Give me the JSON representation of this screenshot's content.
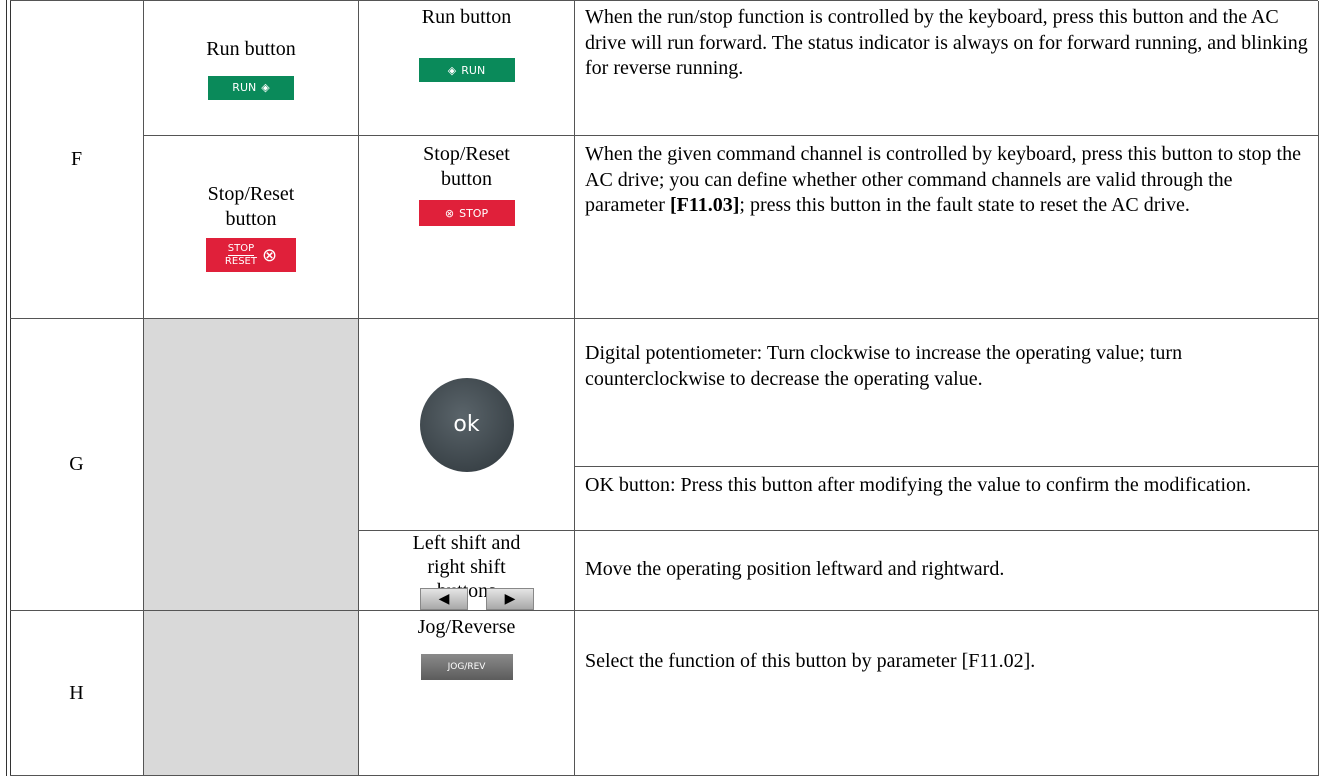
{
  "table": {
    "rows": [
      {
        "key": "F",
        "items": [
          {
            "label_a": "Run button",
            "icon_a": "RUN",
            "label_b": "Run button",
            "icon_b": "RUN",
            "description": [
              "When the run/stop function is controlled by the keyboard, press this button and the AC drive will run forward. The status indicator is always on for forward running, and blinking for reverse running."
            ]
          },
          {
            "label_a": "Stop/Reset button",
            "icon_a": [
              "STOP",
              "RESET"
            ],
            "label_b": "Stop/Reset button",
            "icon_b": "STOP",
            "description": [
              "When the given command channel is controlled by keyboard, press this button to stop the AC drive; you can define whether other command channels are valid through the parameter ",
              "[F11.03]",
              "; press this button in the fault state to reset the AC drive."
            ]
          }
        ]
      },
      {
        "key": "G",
        "items": [
          {
            "icon_b": "ok",
            "descriptions": [
              "Digital potentiometer: Turn clockwise to increase the operating value; turn counterclockwise to decrease the operating value.",
              "OK button: Press this button after modifying the value to confirm the modification."
            ]
          },
          {
            "label_b": "Left shift and right shift buttons",
            "description": [
              "Move the operating position leftward and rightward."
            ]
          }
        ]
      },
      {
        "key": "H",
        "items": [
          {
            "label_b": "Jog/Reverse",
            "icon_b": "JOG/REV",
            "description": [
              "Select the function of this button by parameter [F11.02]."
            ]
          }
        ]
      }
    ]
  }
}
